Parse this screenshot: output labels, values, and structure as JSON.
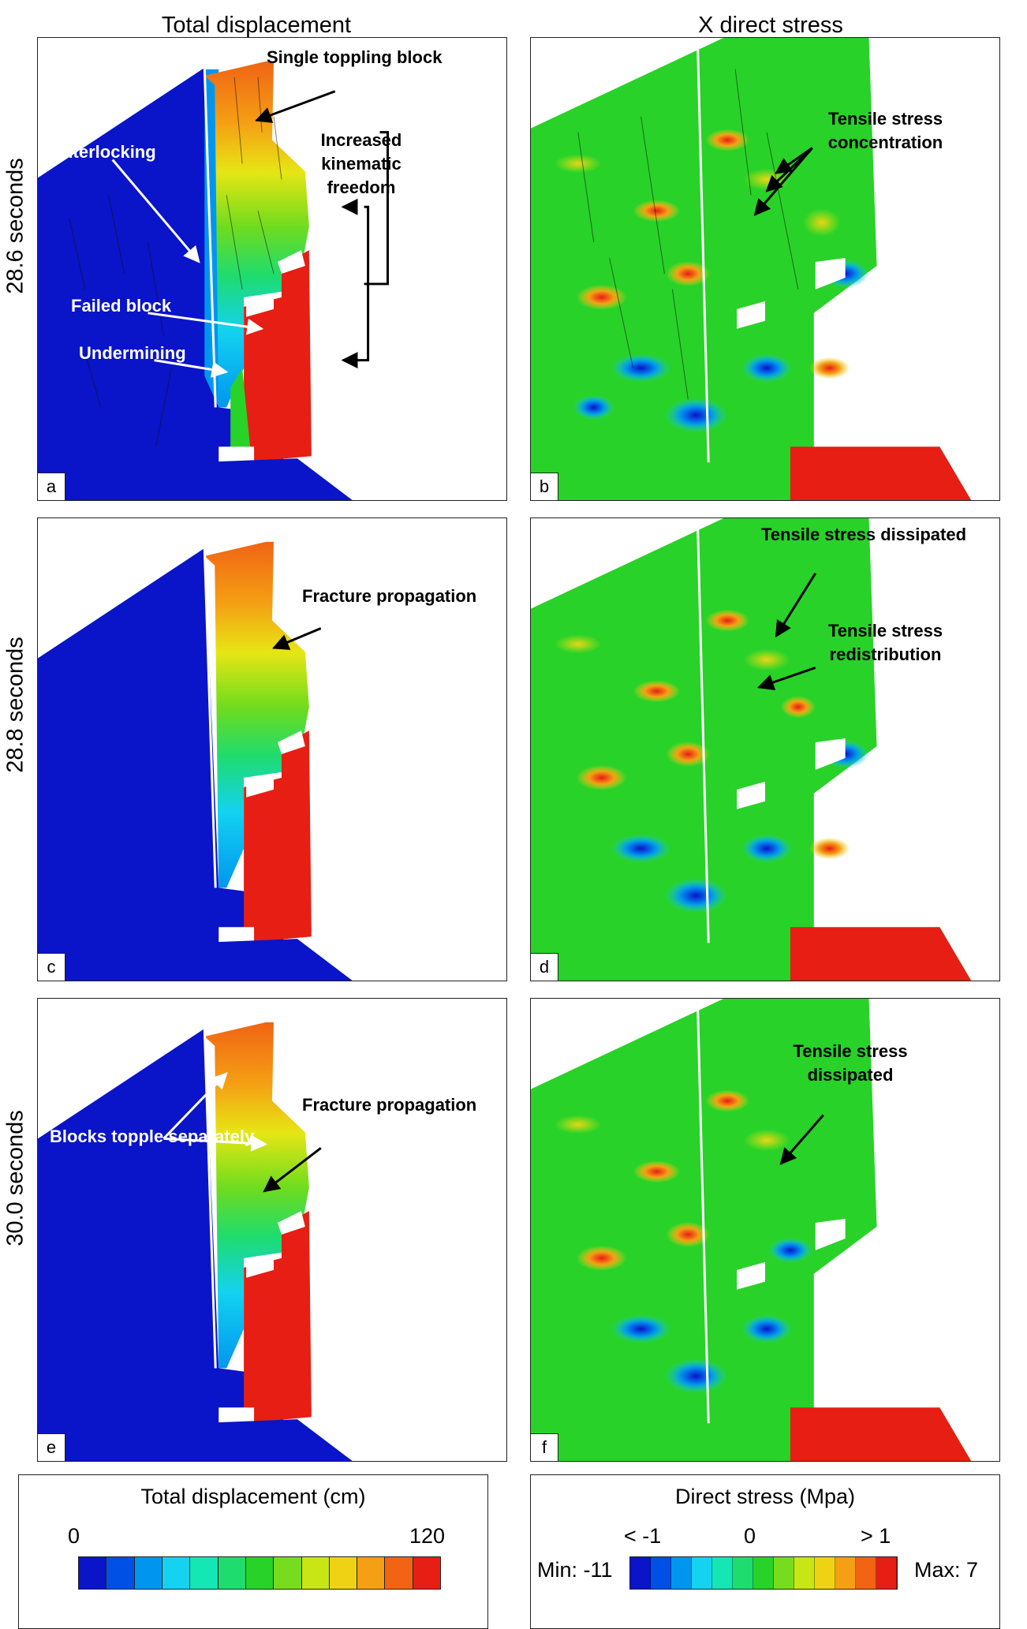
{
  "columns": {
    "left": "Total displacement",
    "right": "X direct stress"
  },
  "rows": [
    "28.6 seconds",
    "28.8 seconds",
    "30.0 seconds"
  ],
  "panel_labels": [
    "a",
    "b",
    "c",
    "d",
    "e",
    "f"
  ],
  "annotations": {
    "a": {
      "single_toppling": "Single toppling block",
      "kinematic": "Increased kinematic freedom",
      "interlocking": "Interlocking",
      "failed_block": "Failed block",
      "undermining": "Undermining"
    },
    "b": {
      "tensile_concentration": "Tensile stress concentration"
    },
    "c": {
      "fracture": "Fracture propagation"
    },
    "d": {
      "dissipated": "Tensile stress dissipated",
      "redistribution": "Tensile stress redistribution"
    },
    "e": {
      "blocks_topple": "Blocks topple separately",
      "fracture": "Fracture propagation"
    },
    "f": {
      "dissipated": "Tensile stress dissipated"
    }
  },
  "legend_displacement": {
    "title": "Total displacement (cm)",
    "min_label": "0",
    "max_label": "120",
    "colors": [
      "#0a14c8",
      "#0050e6",
      "#0096f0",
      "#14d2f0",
      "#14e6b4",
      "#1edc6e",
      "#28d228",
      "#78dc1e",
      "#c8e614",
      "#f0d214",
      "#f5a014",
      "#f06414",
      "#e61e14"
    ]
  },
  "legend_stress": {
    "title": "Direct stress (Mpa)",
    "left_label": "< -1",
    "mid_label": "0",
    "right_label": "> 1",
    "min_text": "Min: -11",
    "max_text": "Max: 7",
    "colors": [
      "#0a14c8",
      "#0050e6",
      "#0096f0",
      "#14d2f0",
      "#14e6b4",
      "#1edc6e",
      "#28d228",
      "#78dc1e",
      "#c8e614",
      "#f0d214",
      "#f5a014",
      "#f06414",
      "#e61e14"
    ]
  }
}
